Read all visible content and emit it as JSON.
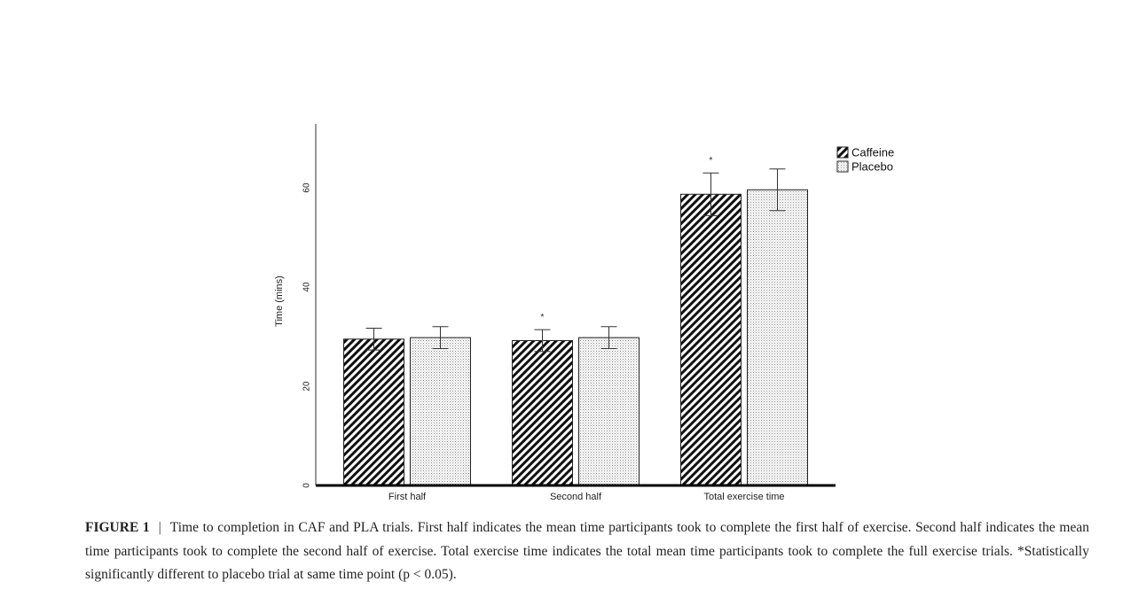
{
  "chart_data": {
    "type": "bar",
    "ylabel": "Time (mins)",
    "ylim": [
      0,
      70
    ],
    "yticks": [
      0,
      20,
      40,
      60
    ],
    "categories": [
      "First half",
      "Second half",
      "Total exercise time"
    ],
    "series": [
      {
        "name": "Caffeine",
        "pattern": "diagonal-hatch",
        "values": [
          29.5,
          29.2,
          58.7
        ],
        "error": [
          2.2,
          2.2,
          4.3
        ]
      },
      {
        "name": "Placebo",
        "pattern": "dotted",
        "values": [
          29.8,
          29.8,
          59.6
        ],
        "error": [
          2.2,
          2.2,
          4.2
        ]
      }
    ],
    "significance_markers": [
      {
        "category": "Second half",
        "series": "Caffeine",
        "text": "*"
      },
      {
        "category": "Total exercise time",
        "series": "Caffeine",
        "text": "*"
      }
    ],
    "legend_position": "top-right",
    "grid": false
  },
  "caption": {
    "label": "FIGURE 1",
    "separator": "|",
    "text": "Time to completion in CAF and PLA trials. First half indicates the mean time participants took to complete the first half of exercise. Second half indicates the mean time participants took to complete the second half of exercise. Total exercise time indicates the total mean time participants took to complete the full exercise trials. *Statistically significantly different to placebo trial at same time point (p < 0.05)."
  }
}
